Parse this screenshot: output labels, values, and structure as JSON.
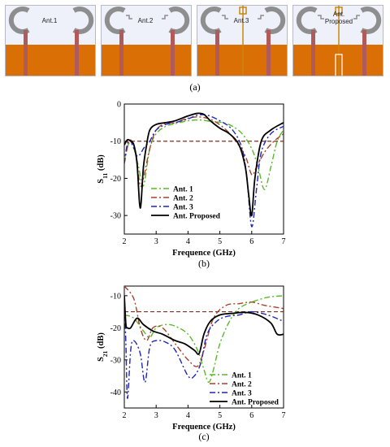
{
  "panel_a": {
    "caption": "(a)",
    "antennas": [
      {
        "label": "Ant.1",
        "label_line2": ""
      },
      {
        "label": "Ant.2",
        "label_line2": ""
      },
      {
        "label": "Ant.3",
        "label_line2": ""
      },
      {
        "label": "Ant.",
        "label_line2": "Proposed"
      }
    ],
    "colors": {
      "substrate": "#e38a1e",
      "ground": "#d96f05",
      "patch": "#8e8e8e",
      "feed": "#b05a5a",
      "background": "#eef0fa"
    }
  },
  "chart_data": [
    {
      "type": "line",
      "caption": "(b)",
      "xlabel": "Frequence (GHz)",
      "ylabel_main": "S",
      "ylabel_sub": "11",
      "ylabel_unit": " (dB)",
      "xlim": [
        2,
        7
      ],
      "ylim": [
        -35,
        0
      ],
      "xticks": [
        2,
        3,
        4,
        5,
        6,
        7
      ],
      "yticks": [
        0,
        -10,
        -20,
        -30
      ],
      "reference_line": -10,
      "reference_color": "#8b2a1a",
      "grid": false,
      "legend_position": "bottom-left",
      "series": [
        {
          "name": "Ant. 1",
          "color": "#5ab828",
          "dash": "7,3,2,3",
          "x": [
            2.0,
            2.15,
            2.3,
            2.45,
            2.6,
            2.8,
            3.0,
            3.3,
            3.6,
            4.0,
            4.4,
            4.8,
            5.1,
            5.4,
            5.7,
            6.0,
            6.2,
            6.4,
            6.6,
            6.8,
            7.0
          ],
          "y": [
            -15,
            -10.5,
            -12,
            -17,
            -22,
            -12,
            -8,
            -6,
            -5.3,
            -4.5,
            -4.3,
            -4.8,
            -5,
            -6,
            -8,
            -12,
            -17,
            -23,
            -17,
            -10,
            -7
          ]
        },
        {
          "name": "Ant. 2",
          "color": "#a8402a",
          "dash": "7,3,2,3",
          "x": [
            2.0,
            2.15,
            2.3,
            2.4,
            2.5,
            2.6,
            2.8,
            3.0,
            3.3,
            3.6,
            4.0,
            4.4,
            4.8,
            5.2,
            5.5,
            5.8,
            6.0,
            6.15,
            6.4,
            6.7,
            7.0
          ],
          "y": [
            -16,
            -10,
            -11,
            -16,
            -22,
            -20,
            -12,
            -7,
            -5.2,
            -5,
            -3.8,
            -3.5,
            -4.5,
            -7,
            -10,
            -14,
            -19,
            -17,
            -13,
            -10,
            -8
          ]
        },
        {
          "name": "Ant. 3",
          "color": "#1e24b8",
          "dash": "7,3,2,3",
          "x": [
            2.0,
            2.1,
            2.2,
            2.3,
            2.4,
            2.5,
            2.6,
            2.7,
            2.8,
            3.0,
            3.3,
            3.6,
            4.0,
            4.3,
            4.6,
            5.0,
            5.4,
            5.7,
            5.85,
            6.0,
            6.15,
            6.3,
            6.6,
            7.0
          ],
          "y": [
            -16,
            -10.5,
            -10,
            -12,
            -14,
            -13.5,
            -12,
            -11,
            -10,
            -7,
            -5.5,
            -5,
            -4,
            -3,
            -3,
            -4.5,
            -7,
            -12,
            -20,
            -33,
            -23,
            -13,
            -8,
            -6
          ]
        },
        {
          "name": "Ant. Proposed",
          "color": "#000000",
          "dash": "",
          "x": [
            2.0,
            2.1,
            2.2,
            2.3,
            2.4,
            2.5,
            2.6,
            2.7,
            2.8,
            3.0,
            3.3,
            3.6,
            4.0,
            4.3,
            4.5,
            4.7,
            5.0,
            5.3,
            5.6,
            5.8,
            5.9,
            6.0,
            6.1,
            6.3,
            6.6,
            7.0
          ],
          "y": [
            -11,
            -9.6,
            -10,
            -11,
            -16,
            -28,
            -17,
            -11,
            -7,
            -5.5,
            -5,
            -4.5,
            -3.2,
            -2.5,
            -2.8,
            -4.5,
            -6.5,
            -8,
            -11,
            -17,
            -24,
            -30,
            -20,
            -10,
            -7,
            -5
          ]
        }
      ]
    },
    {
      "type": "line",
      "caption": "(c)",
      "xlabel": "Frequence (GHz)",
      "ylabel_main": "S",
      "ylabel_sub": "21",
      "ylabel_unit": " (dB)",
      "xlim": [
        2,
        7
      ],
      "ylim": [
        -45,
        -7
      ],
      "xticks": [
        2,
        3,
        4,
        5,
        6,
        7
      ],
      "yticks": [
        -10,
        -20,
        -30,
        -40
      ],
      "reference_line": -15,
      "reference_color": "#8b2a1a",
      "grid": false,
      "legend_position": "bottom-right",
      "series": [
        {
          "name": "Ant. 1",
          "color": "#5ab828",
          "dash": "7,3,2,3",
          "x": [
            2.0,
            2.3,
            2.6,
            2.8,
            3.0,
            3.3,
            3.6,
            4.0,
            4.3,
            4.5,
            4.65,
            4.8,
            5.0,
            5.3,
            5.6,
            6.0,
            6.5,
            7.0
          ],
          "y": [
            -16,
            -17,
            -21,
            -23,
            -20,
            -19,
            -19.5,
            -22,
            -27,
            -33,
            -37,
            -33,
            -25,
            -18,
            -14,
            -12,
            -10.5,
            -10
          ]
        },
        {
          "name": "Ant. 2",
          "color": "#a8402a",
          "dash": "7,3,2,3",
          "x": [
            2.0,
            2.3,
            2.5,
            2.7,
            2.9,
            3.2,
            3.6,
            4.0,
            4.3,
            4.5,
            4.8,
            5.2,
            5.6,
            6.0,
            6.4,
            7.0
          ],
          "y": [
            -7,
            -11,
            -20,
            -24,
            -20,
            -20,
            -25,
            -30,
            -32,
            -27,
            -17,
            -13,
            -12.5,
            -12,
            -13,
            -14
          ]
        },
        {
          "name": "Ant. 3",
          "color": "#1e24b8",
          "dash": "7,3,2,3",
          "x": [
            2.0,
            2.05,
            2.1,
            2.2,
            2.3,
            2.5,
            2.65,
            2.8,
            3.0,
            3.3,
            3.6,
            4.0,
            4.2,
            4.4,
            4.6,
            4.9,
            5.2,
            5.6,
            6.0,
            6.5,
            7.0
          ],
          "y": [
            -11,
            -25,
            -42,
            -27,
            -24,
            -28,
            -37,
            -26,
            -24,
            -24.5,
            -27,
            -35,
            -35,
            -31,
            -22,
            -18,
            -16.5,
            -16,
            -15,
            -16,
            -18
          ]
        },
        {
          "name": "Ant. Proposed",
          "color": "#000000",
          "dash": "",
          "x": [
            2.0,
            2.05,
            2.1,
            2.2,
            2.4,
            2.6,
            2.9,
            3.2,
            3.6,
            3.9,
            4.2,
            4.35,
            4.5,
            4.7,
            5.0,
            5.4,
            5.8,
            6.2,
            6.6,
            6.8,
            7.0
          ],
          "y": [
            -10,
            -19,
            -20,
            -20,
            -17,
            -19,
            -21,
            -22,
            -24,
            -25,
            -27,
            -28,
            -22,
            -18,
            -16,
            -15.5,
            -15.2,
            -16,
            -18.5,
            -22,
            -22
          ]
        }
      ]
    }
  ]
}
